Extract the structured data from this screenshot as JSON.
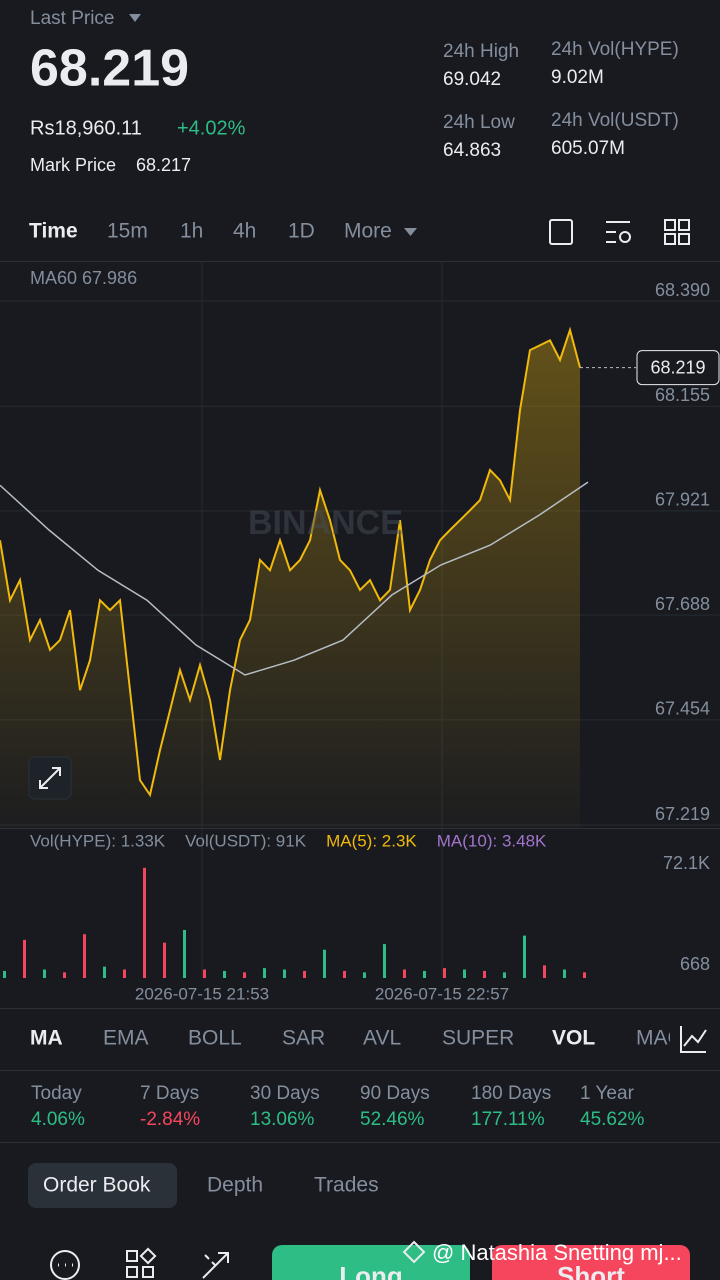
{
  "header": {
    "last_price_label": "Last Price",
    "price": "68.219",
    "fiat_price": "Rs18,960.11",
    "change": "+4.02%",
    "mark_label": "Mark Price",
    "mark_value": "68.217",
    "stats": [
      {
        "label": "24h High",
        "value": "69.042"
      },
      {
        "label": "24h Vol(HYPE)",
        "value": "9.02M"
      },
      {
        "label": "24h Low",
        "value": "64.863"
      },
      {
        "label": "24h Vol(USDT)",
        "value": "605.07M"
      }
    ]
  },
  "intervals": [
    "Time",
    "15m",
    "1h",
    "4h",
    "1D",
    "More"
  ],
  "chart_data": [
    {
      "type": "line",
      "watermark": "BINANCE",
      "legend": "MA60 67.986",
      "color": "#f0b90b",
      "ma_color": "#b7bdc6",
      "values": [
        67.833,
        67.699,
        67.744,
        67.61,
        67.655,
        67.588,
        67.61,
        67.677,
        67.498,
        67.565,
        67.699,
        67.677,
        67.699,
        67.498,
        67.297,
        67.264,
        67.364,
        67.453,
        67.543,
        67.476,
        67.554,
        67.476,
        67.342,
        67.498,
        67.61,
        67.655,
        67.789,
        67.766,
        67.833,
        67.766,
        67.789,
        67.833,
        67.945,
        67.878,
        67.789,
        67.766,
        67.722,
        67.744,
        67.699,
        67.722,
        67.878,
        67.677,
        67.722,
        67.789,
        67.833,
        67.856,
        67.878,
        67.9,
        67.923,
        67.99,
        67.967,
        67.923,
        68.124,
        68.258,
        68.269,
        68.28,
        68.236,
        68.303,
        68.219
      ],
      "ma_values": [
        67.956,
        67.856,
        67.766,
        67.699,
        67.599,
        67.532,
        67.565,
        67.61,
        67.711,
        67.778,
        67.822,
        67.889,
        67.963
      ],
      "last_label": "68.219",
      "ylim": [
        67.19,
        68.455
      ],
      "yticks": [
        {
          "value": 68.39,
          "label": "68.390"
        },
        {
          "value": 68.155,
          "label": "68.155"
        },
        {
          "value": 67.921,
          "label": "67.921"
        },
        {
          "value": 67.688,
          "label": "67.688"
        },
        {
          "value": 67.454,
          "label": "67.454"
        },
        {
          "value": 67.219,
          "label": "67.219"
        }
      ],
      "xticks": [
        {
          "value": 20,
          "label": "2026-07-15 21:53"
        },
        {
          "value": 44,
          "label": "2026-07-15 22:57"
        }
      ]
    },
    {
      "type": "bar",
      "legend": [
        "Vol(HYPE): 1.33K",
        "Vol(USDT): 91K",
        "MA(5): 2.3K",
        "MA(10): 3.48K"
      ],
      "legend_colors": [
        "#848e9c",
        "#848e9c",
        "#f0b90b",
        "#a274c9"
      ],
      "values": [
        5,
        27,
        6,
        4,
        31,
        8,
        6,
        78,
        25,
        34,
        6,
        5,
        4,
        7,
        6,
        5,
        20,
        5,
        4,
        24,
        6,
        5,
        7,
        6,
        5,
        4,
        30,
        9,
        6,
        4
      ],
      "colors": [
        "#2ebd85",
        "#f6465d",
        "#2ebd85",
        "#f6465d",
        "#f6465d",
        "#2ebd85",
        "#f6465d",
        "#f6465d",
        "#f6465d",
        "#2ebd85",
        "#f6465d",
        "#2ebd85",
        "#f6465d",
        "#2ebd85",
        "#2ebd85",
        "#f6465d",
        "#2ebd85",
        "#f6465d",
        "#2ebd85",
        "#2ebd85",
        "#f6465d",
        "#2ebd85",
        "#f6465d",
        "#2ebd85",
        "#f6465d",
        "#2ebd85",
        "#2ebd85",
        "#f6465d",
        "#2ebd85",
        "#f6465d"
      ],
      "ylim": [
        0,
        80
      ],
      "yticks": [
        {
          "value": 72.1,
          "label": "72.1K"
        },
        {
          "value": 0.668,
          "label": "668"
        }
      ]
    }
  ],
  "indicators": [
    "MA",
    "EMA",
    "BOLL",
    "SAR",
    "AVL",
    "SUPER",
    "VOL",
    "MACD"
  ],
  "performance": [
    {
      "label": "Today",
      "value": "4.06%"
    },
    {
      "label": "7 Days",
      "value": "-2.84%"
    },
    {
      "label": "30 Days",
      "value": "13.06%"
    },
    {
      "label": "90 Days",
      "value": "52.46%"
    },
    {
      "label": "180 Days",
      "value": "177.11%"
    },
    {
      "label": "1 Year",
      "value": "45.62%"
    }
  ],
  "tabs": [
    "Order Book",
    "Depth",
    "Trades"
  ],
  "actions": {
    "long": "Long",
    "short": "Short"
  },
  "watermark": "@ Natashia Snetting mj..."
}
